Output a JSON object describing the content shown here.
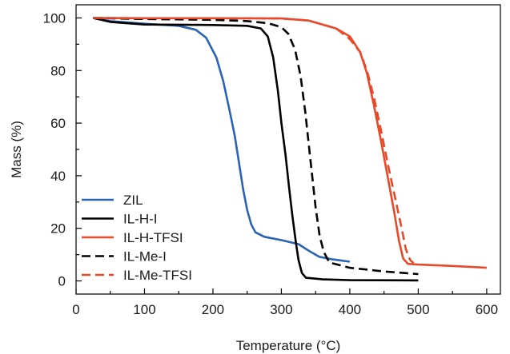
{
  "chart_data": {
    "type": "line",
    "title": "",
    "xlabel": "Temperature (°C)",
    "ylabel": "Mass (%)",
    "xlim": [
      0,
      620
    ],
    "ylim": [
      -5,
      105
    ],
    "xticks": [
      0,
      100,
      200,
      300,
      400,
      500,
      600
    ],
    "yticks": [
      0,
      20,
      40,
      60,
      80,
      100
    ],
    "grid": false,
    "legend_position": "bottom-left",
    "series": [
      {
        "name": "ZIL",
        "color": "#2a62b5",
        "dash": "solid",
        "points": [
          [
            25,
            100
          ],
          [
            50,
            98.8
          ],
          [
            100,
            97.8
          ],
          [
            150,
            97
          ],
          [
            175,
            95.5
          ],
          [
            190,
            92.5
          ],
          [
            205,
            85
          ],
          [
            215,
            76
          ],
          [
            225,
            64
          ],
          [
            232,
            55
          ],
          [
            238,
            45
          ],
          [
            244,
            35
          ],
          [
            250,
            27
          ],
          [
            256,
            21.5
          ],
          [
            262,
            18.5
          ],
          [
            275,
            16.8
          ],
          [
            300,
            15.5
          ],
          [
            325,
            14
          ],
          [
            340,
            11.5
          ],
          [
            355,
            9.2
          ],
          [
            375,
            8.2
          ],
          [
            400,
            7.3
          ]
        ]
      },
      {
        "name": "IL-H-I",
        "color": "#000000",
        "dash": "solid",
        "points": [
          [
            25,
            100
          ],
          [
            50,
            98.5
          ],
          [
            100,
            97.5
          ],
          [
            200,
            97.3
          ],
          [
            250,
            97
          ],
          [
            270,
            96
          ],
          [
            280,
            93
          ],
          [
            288,
            85
          ],
          [
            295,
            72
          ],
          [
            300,
            60
          ],
          [
            306,
            48
          ],
          [
            311,
            36
          ],
          [
            316,
            25
          ],
          [
            321,
            15
          ],
          [
            325,
            8
          ],
          [
            330,
            3
          ],
          [
            336,
            1.2
          ],
          [
            360,
            0.6
          ],
          [
            400,
            0.3
          ],
          [
            500,
            0.2
          ]
        ]
      },
      {
        "name": "IL-H-TFSI",
        "color": "#e8492a",
        "dash": "solid",
        "points": [
          [
            25,
            100
          ],
          [
            100,
            99.9
          ],
          [
            200,
            99.9
          ],
          [
            300,
            99.8
          ],
          [
            340,
            99
          ],
          [
            380,
            96
          ],
          [
            400,
            93
          ],
          [
            415,
            87
          ],
          [
            425,
            79
          ],
          [
            435,
            67
          ],
          [
            445,
            54
          ],
          [
            455,
            40
          ],
          [
            465,
            26
          ],
          [
            472,
            15
          ],
          [
            478,
            8.5
          ],
          [
            485,
            6.5
          ],
          [
            500,
            6.2
          ],
          [
            550,
            5.7
          ],
          [
            600,
            5.0
          ]
        ]
      },
      {
        "name": "IL-Me-I",
        "color": "#000000",
        "dash": "dashed",
        "points": [
          [
            25,
            100
          ],
          [
            100,
            99.6
          ],
          [
            200,
            99.3
          ],
          [
            250,
            98.8
          ],
          [
            280,
            98
          ],
          [
            300,
            96.5
          ],
          [
            310,
            94
          ],
          [
            320,
            88
          ],
          [
            328,
            78
          ],
          [
            335,
            64
          ],
          [
            340,
            52
          ],
          [
            345,
            40
          ],
          [
            350,
            28
          ],
          [
            356,
            17
          ],
          [
            362,
            11
          ],
          [
            370,
            7
          ],
          [
            400,
            5
          ],
          [
            450,
            3.6
          ],
          [
            500,
            2.6
          ]
        ]
      },
      {
        "name": "IL-Me-TFSI",
        "color": "#e8492a",
        "dash": "dashed",
        "points": [
          [
            25,
            100
          ],
          [
            100,
            99.9
          ],
          [
            200,
            99.9
          ],
          [
            300,
            99.8
          ],
          [
            340,
            99
          ],
          [
            380,
            96
          ],
          [
            400,
            92
          ],
          [
            415,
            87
          ],
          [
            425,
            80
          ],
          [
            435,
            70
          ],
          [
            445,
            58
          ],
          [
            455,
            45
          ],
          [
            465,
            33
          ],
          [
            475,
            21
          ],
          [
            482,
            12
          ],
          [
            488,
            8
          ],
          [
            493,
            6.8
          ]
        ]
      }
    ]
  }
}
